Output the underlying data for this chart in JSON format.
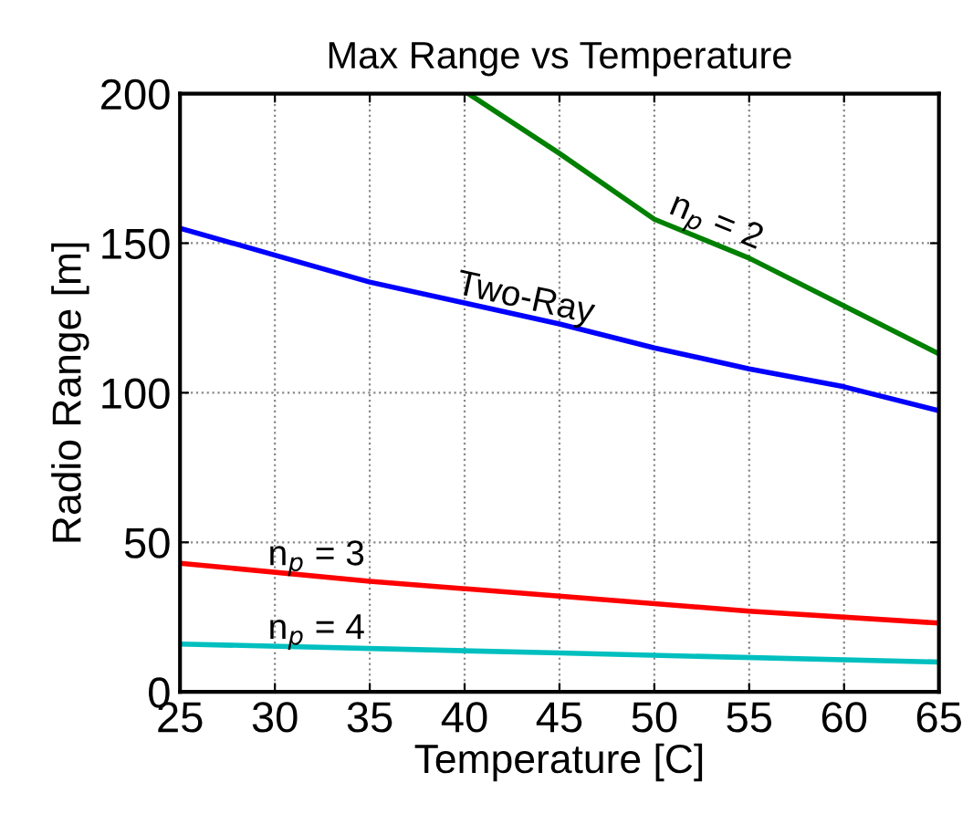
{
  "chart_data": {
    "type": "line",
    "title": "Max Range vs Temperature",
    "xlabel": "Temperature [C]",
    "ylabel": "Radio Range [m]",
    "xlim": [
      25,
      65
    ],
    "xticks": [
      25,
      30,
      35,
      40,
      45,
      50,
      55,
      60,
      65
    ],
    "ylim": [
      0,
      200
    ],
    "yticks": [
      0,
      50,
      100,
      150,
      200
    ],
    "grid": true,
    "line_style": "solid",
    "series": [
      {
        "name": "n$_{p}$ = 2",
        "color": "#008000",
        "x": [
          40.2,
          45,
          50,
          55,
          60,
          65
        ],
        "values": [
          200,
          180,
          158,
          145,
          129,
          113
        ]
      },
      {
        "name": "Two-Ray",
        "color": "#0000ff",
        "x": [
          25,
          30,
          35,
          40,
          45,
          50,
          55,
          60,
          65
        ],
        "values": [
          155,
          146,
          137,
          130,
          123,
          115,
          108,
          102,
          94
        ]
      },
      {
        "name": "n$_{p}$ = 3",
        "color": "#ff0000",
        "x": [
          25,
          35,
          45,
          55,
          65
        ],
        "values": [
          43,
          37,
          32,
          27,
          23
        ]
      },
      {
        "name": "n$_{p}$ = 4",
        "color": "#00bfbf",
        "x": [
          25,
          45,
          65
        ],
        "values": [
          16,
          13,
          10
        ]
      }
    ]
  }
}
